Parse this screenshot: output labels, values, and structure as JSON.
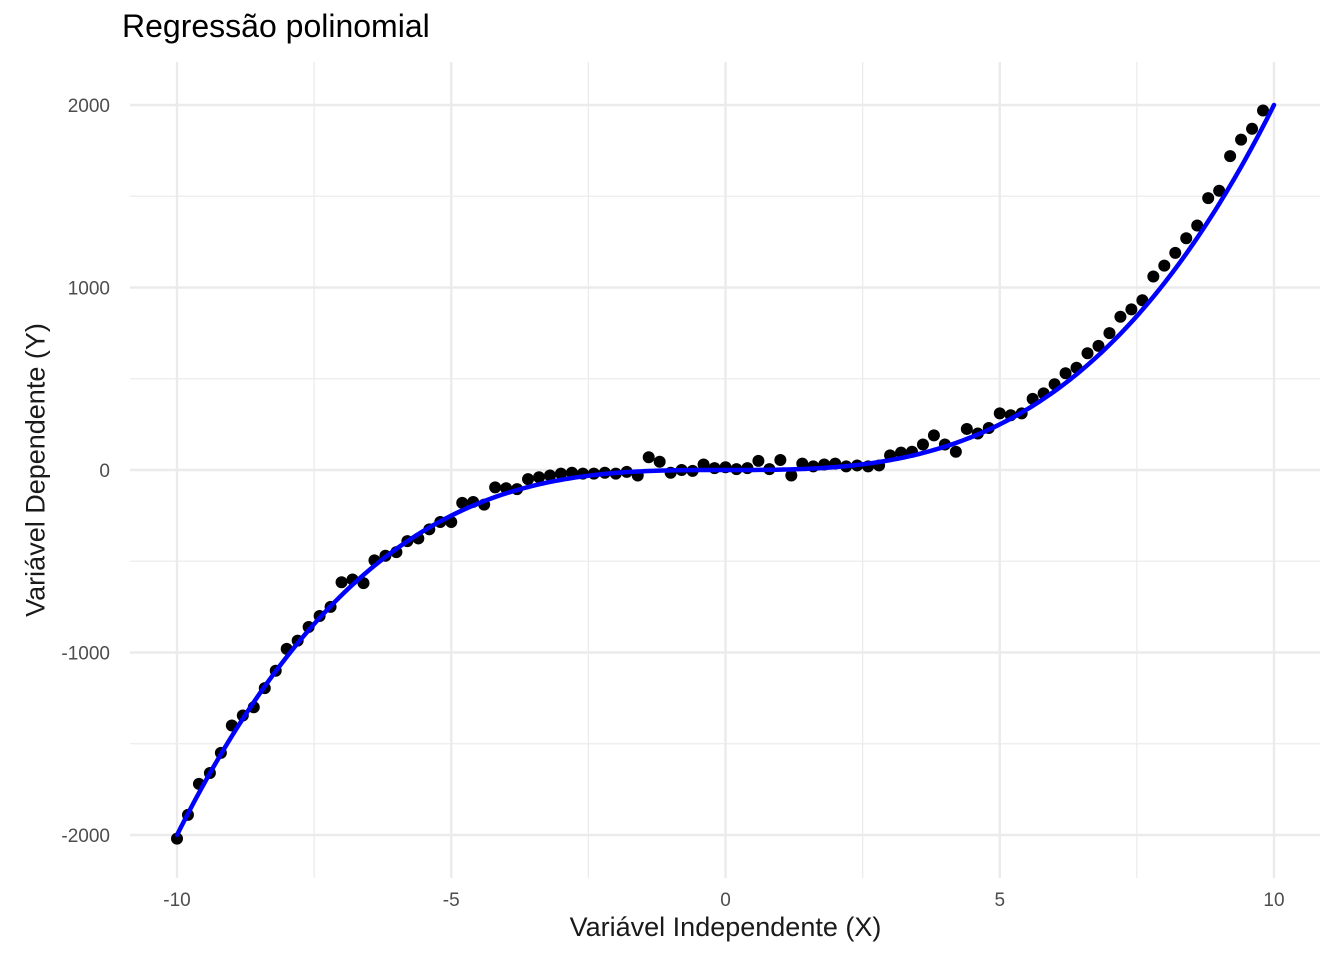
{
  "chart_data": {
    "type": "scatter",
    "title": "Regressão polinomial",
    "xlabel": "Variável Independente (X)",
    "ylabel": "Variável Dependente (Y)",
    "xlim": [
      -10.45,
      10.45
    ],
    "ylim": [
      -2200,
      2240
    ],
    "x_ticks": [
      -10,
      -5,
      0,
      5,
      10
    ],
    "x_tick_labels": [
      "-10",
      "-5",
      "0",
      "5",
      "10"
    ],
    "y_ticks": [
      -2000,
      -1000,
      0,
      1000,
      2000
    ],
    "y_tick_labels": [
      "-2000",
      "-1000",
      "0",
      "1000",
      "2000"
    ],
    "grid": true,
    "colors": {
      "points": "#000000",
      "fit_line": "#0000ff",
      "grid": "#ebebeb"
    },
    "fit": {
      "type": "polynomial",
      "coefficients": [
        0,
        0,
        0,
        2
      ]
    },
    "points": [
      [
        -10.0,
        -2020
      ],
      [
        -9.8,
        -1890
      ],
      [
        -9.6,
        -1720
      ],
      [
        -9.4,
        -1660
      ],
      [
        -9.2,
        -1550
      ],
      [
        -9.0,
        -1400
      ],
      [
        -8.8,
        -1345
      ],
      [
        -8.6,
        -1300
      ],
      [
        -8.4,
        -1195
      ],
      [
        -8.2,
        -1100
      ],
      [
        -8.0,
        -980
      ],
      [
        -7.8,
        -935
      ],
      [
        -7.6,
        -860
      ],
      [
        -7.4,
        -800
      ],
      [
        -7.2,
        -750
      ],
      [
        -7.0,
        -615
      ],
      [
        -6.8,
        -600
      ],
      [
        -6.6,
        -620
      ],
      [
        -6.4,
        -495
      ],
      [
        -6.2,
        -470
      ],
      [
        -6.0,
        -450
      ],
      [
        -5.8,
        -390
      ],
      [
        -5.6,
        -375
      ],
      [
        -5.4,
        -325
      ],
      [
        -5.2,
        -285
      ],
      [
        -5.0,
        -285
      ],
      [
        -4.8,
        -180
      ],
      [
        -4.6,
        -175
      ],
      [
        -4.4,
        -190
      ],
      [
        -4.2,
        -95
      ],
      [
        -4.0,
        -100
      ],
      [
        -3.8,
        -105
      ],
      [
        -3.6,
        -50
      ],
      [
        -3.4,
        -40
      ],
      [
        -3.2,
        -30
      ],
      [
        -3.0,
        -20
      ],
      [
        -2.8,
        -15
      ],
      [
        -2.6,
        -20
      ],
      [
        -2.4,
        -20
      ],
      [
        -2.2,
        -15
      ],
      [
        -2.0,
        -20
      ],
      [
        -1.8,
        -10
      ],
      [
        -1.6,
        -30
      ],
      [
        -1.4,
        70
      ],
      [
        -1.2,
        45
      ],
      [
        -1.0,
        -15
      ],
      [
        -0.8,
        0
      ],
      [
        -0.6,
        -5
      ],
      [
        -0.4,
        30
      ],
      [
        -0.2,
        10
      ],
      [
        0.0,
        15
      ],
      [
        0.2,
        5
      ],
      [
        0.4,
        10
      ],
      [
        0.6,
        50
      ],
      [
        0.8,
        5
      ],
      [
        1.0,
        55
      ],
      [
        1.2,
        -30
      ],
      [
        1.4,
        35
      ],
      [
        1.6,
        20
      ],
      [
        1.8,
        30
      ],
      [
        2.0,
        35
      ],
      [
        2.2,
        20
      ],
      [
        2.4,
        25
      ],
      [
        2.6,
        20
      ],
      [
        2.8,
        25
      ],
      [
        3.0,
        80
      ],
      [
        3.2,
        95
      ],
      [
        3.4,
        100
      ],
      [
        3.6,
        140
      ],
      [
        3.8,
        190
      ],
      [
        4.0,
        140
      ],
      [
        4.2,
        100
      ],
      [
        4.4,
        225
      ],
      [
        4.6,
        200
      ],
      [
        4.8,
        230
      ],
      [
        5.0,
        310
      ],
      [
        5.2,
        300
      ],
      [
        5.4,
        310
      ],
      [
        5.6,
        390
      ],
      [
        5.8,
        420
      ],
      [
        6.0,
        470
      ],
      [
        6.2,
        530
      ],
      [
        6.4,
        560
      ],
      [
        6.6,
        640
      ],
      [
        6.8,
        680
      ],
      [
        7.0,
        750
      ],
      [
        7.2,
        840
      ],
      [
        7.4,
        880
      ],
      [
        7.6,
        930
      ],
      [
        7.8,
        1060
      ],
      [
        8.0,
        1120
      ],
      [
        8.2,
        1190
      ],
      [
        8.4,
        1270
      ],
      [
        8.6,
        1340
      ],
      [
        8.8,
        1490
      ],
      [
        9.0,
        1530
      ],
      [
        9.2,
        1720
      ],
      [
        9.4,
        1810
      ],
      [
        9.6,
        1870
      ],
      [
        9.8,
        1970
      ]
    ]
  }
}
